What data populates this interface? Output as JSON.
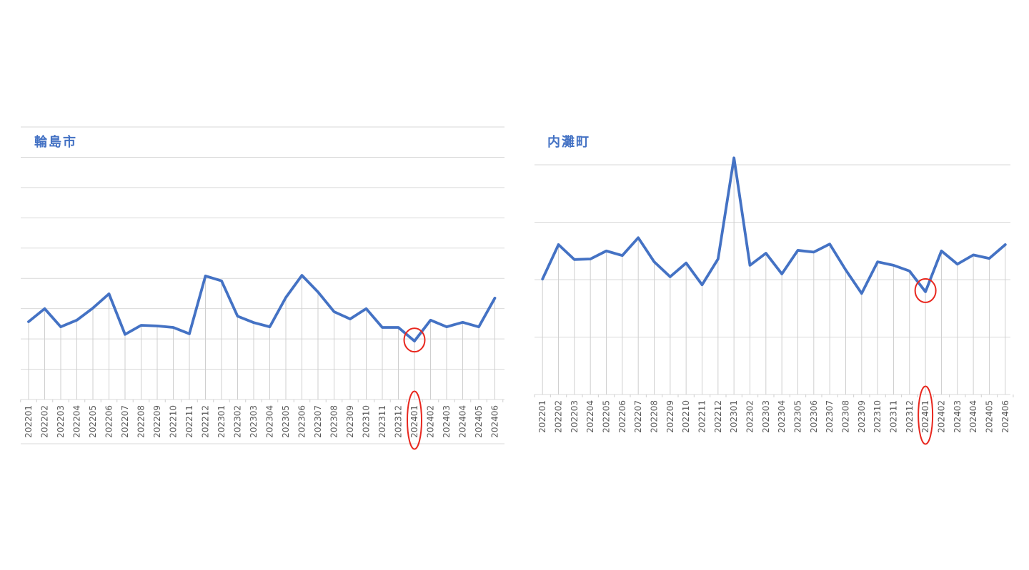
{
  "colors": {
    "series_line": "#4472c4",
    "title_text": "#4472c4",
    "annotation_red": "#e8271e",
    "gridline": "#d9d9d9",
    "drop_line": "#cfcfcf",
    "tick": "#cfcfcf",
    "axis_label_text": "#595959",
    "background": "#ffffff"
  },
  "chart_data": [
    {
      "type": "line",
      "title": "輪島市",
      "categories": [
        "202201",
        "202202",
        "202203",
        "202204",
        "202205",
        "202206",
        "202207",
        "202208",
        "202209",
        "202210",
        "202211",
        "202212",
        "202301",
        "202302",
        "202303",
        "202304",
        "202305",
        "202306",
        "202307",
        "202308",
        "202309",
        "202310",
        "202311",
        "202312",
        "202401",
        "202402",
        "202403",
        "202404",
        "202405",
        "202406"
      ],
      "values": [
        25.7,
        30.0,
        24.0,
        26.2,
        30.2,
        34.9,
        21.5,
        24.5,
        24.3,
        23.8,
        21.7,
        40.8,
        39.2,
        27.5,
        25.4,
        24.0,
        33.7,
        41.0,
        35.5,
        29.0,
        26.6,
        30.0,
        23.8,
        23.8,
        19.3,
        26.2,
        24.0,
        25.5,
        24.0,
        33.5
      ],
      "xlabel": "",
      "ylabel": "",
      "y_axis_labels_visible": false,
      "value_scale_note": "y-axis unlabeled; values estimated in relative units, 1 gridline interval = 10",
      "ylim": [
        0,
        90
      ],
      "grid": "horizontal",
      "legend": "none",
      "highlighted_category": "202401",
      "annotations": [
        {
          "shape": "ellipse",
          "color": "#e8271e",
          "around": "data point 202401"
        },
        {
          "shape": "ellipse",
          "color": "#e8271e",
          "around": "x-axis label 202401"
        }
      ]
    },
    {
      "type": "line",
      "title": "内灘町",
      "categories": [
        "202201",
        "202202",
        "202203",
        "202204",
        "202205",
        "202206",
        "202207",
        "202208",
        "202209",
        "202210",
        "202211",
        "202212",
        "202301",
        "202302",
        "202303",
        "202304",
        "202305",
        "202306",
        "202307",
        "202308",
        "202309",
        "202310",
        "202311",
        "202312",
        "202401",
        "202402",
        "202403",
        "202404",
        "202405",
        "202406"
      ],
      "values": [
        20.1,
        26.1,
        23.5,
        23.6,
        25.0,
        24.2,
        27.3,
        23.1,
        20.5,
        22.9,
        19.1,
        23.6,
        41.2,
        22.5,
        24.6,
        21.0,
        25.1,
        24.8,
        26.2,
        21.7,
        17.6,
        23.1,
        22.5,
        21.5,
        17.9,
        25.0,
        22.7,
        24.3,
        23.7,
        26.1
      ],
      "xlabel": "",
      "ylabel": "",
      "y_axis_labels_visible": false,
      "value_scale_note": "y-axis unlabeled; values estimated in relative units, 1 gridline interval = 10",
      "ylim": [
        0,
        40
      ],
      "grid": "horizontal",
      "legend": "none",
      "highlighted_category": "202401",
      "annotations": [
        {
          "shape": "ellipse",
          "color": "#e8271e",
          "around": "data point 202401"
        },
        {
          "shape": "ellipse",
          "color": "#e8271e",
          "around": "x-axis label 202401"
        }
      ]
    }
  ]
}
